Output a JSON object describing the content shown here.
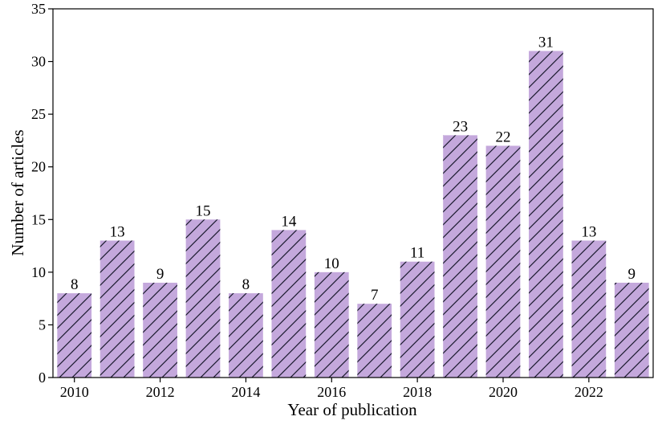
{
  "chart_data": {
    "type": "bar",
    "title": "",
    "xlabel": "Year of publication",
    "ylabel": "Number of articles",
    "categories": [
      "2010",
      "2011",
      "2012",
      "2013",
      "2014",
      "2015",
      "2016",
      "2017",
      "2018",
      "2019",
      "2020",
      "2021",
      "2022",
      "2023"
    ],
    "values": [
      8,
      13,
      9,
      15,
      8,
      14,
      10,
      7,
      11,
      23,
      22,
      31,
      13,
      9
    ],
    "ylim": [
      0,
      35
    ],
    "yticks": [
      0,
      5,
      10,
      15,
      20,
      25,
      30,
      35
    ],
    "xtick_labels": [
      "2010",
      "2012",
      "2014",
      "2016",
      "2018",
      "2020",
      "2022"
    ],
    "data_labels": [
      "8",
      "13",
      "9",
      "15",
      "8",
      "14",
      "10",
      "7",
      "11",
      "23",
      "22",
      "31",
      "13",
      "9"
    ],
    "grid": false,
    "legend": "none",
    "bar_color": "#c4a8dc",
    "hatch": "diagonal",
    "hatch_color": "#1a1a2e"
  }
}
